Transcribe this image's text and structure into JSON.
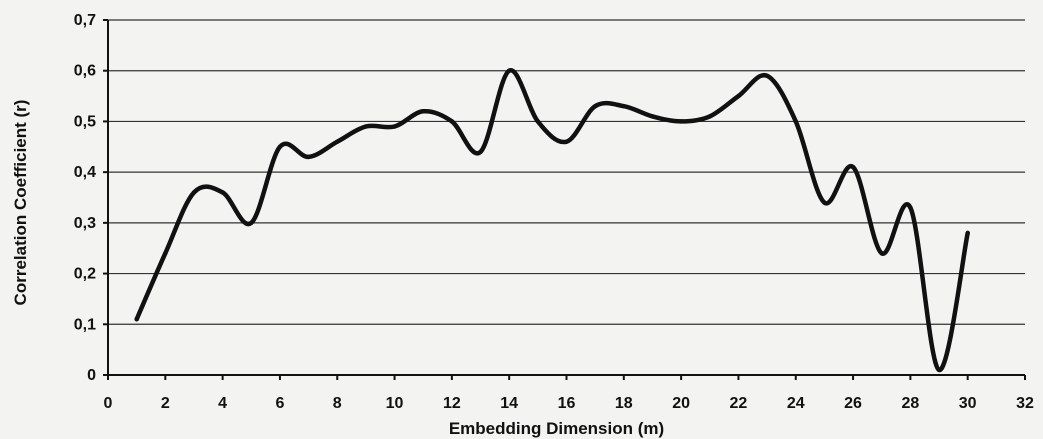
{
  "chart_data": {
    "type": "line",
    "xlabel": "Embedding Dimension (m)",
    "ylabel": "Correlation Coefficient (r)",
    "xlim": [
      0,
      32
    ],
    "ylim": [
      0,
      0.7
    ],
    "x_ticks": [
      "0",
      "2",
      "4",
      "6",
      "8",
      "10",
      "12",
      "14",
      "16",
      "18",
      "20",
      "22",
      "24",
      "26",
      "28",
      "30",
      "32"
    ],
    "y_ticks": [
      "0",
      "0,1",
      "0,2",
      "0,3",
      "0,4",
      "0,5",
      "0,6",
      "0,7"
    ],
    "grid": "horizontal",
    "line_color": "#111111",
    "series": [
      {
        "x": [
          1,
          2,
          3,
          4,
          5,
          6,
          7,
          8,
          9,
          10,
          11,
          12,
          13,
          14,
          15,
          16,
          17,
          18,
          19,
          20,
          21,
          22,
          23,
          24,
          25,
          26,
          27,
          28,
          29,
          30
        ],
        "values": [
          0.11,
          0.24,
          0.36,
          0.36,
          0.3,
          0.45,
          0.43,
          0.46,
          0.49,
          0.49,
          0.52,
          0.5,
          0.44,
          0.6,
          0.5,
          0.46,
          0.53,
          0.53,
          0.51,
          0.5,
          0.51,
          0.55,
          0.59,
          0.5,
          0.34,
          0.41,
          0.24,
          0.33,
          0.01,
          0.28
        ]
      }
    ]
  }
}
